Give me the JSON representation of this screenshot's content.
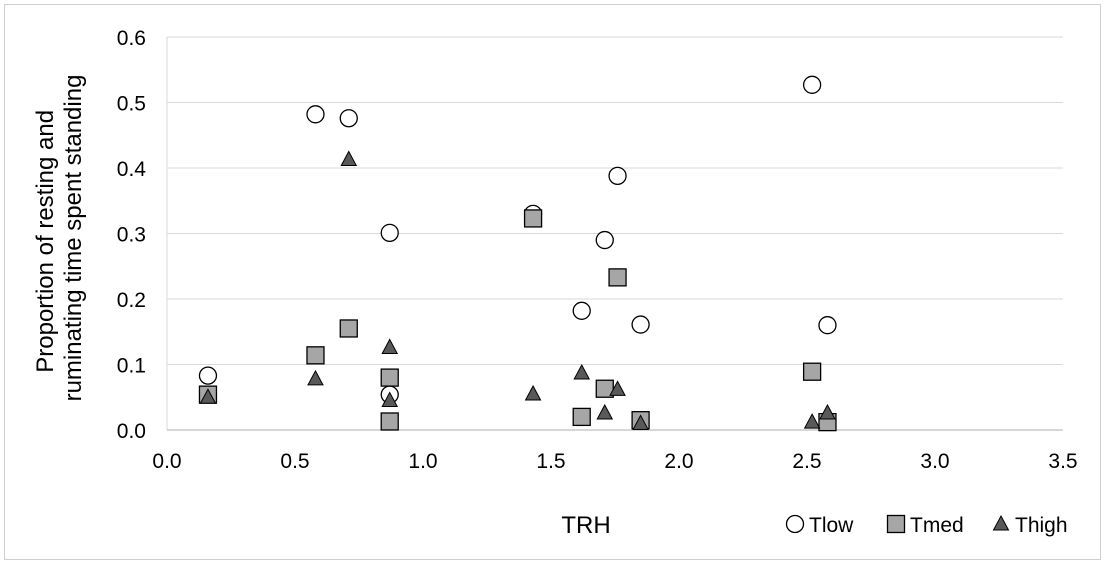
{
  "chart_data": {
    "type": "scatter",
    "title": "",
    "xlabel": "TRH",
    "ylabel_lines": [
      "Proportion of resting and",
      "ruminating time spent standing"
    ],
    "xlim": [
      0,
      3.5
    ],
    "ylim": [
      0,
      0.6
    ],
    "x_ticks": [
      "0.0",
      "0.5",
      "1.0",
      "1.5",
      "2.0",
      "2.5",
      "3.0",
      "3.5"
    ],
    "y_ticks": [
      "0.0",
      "0.1",
      "0.2",
      "0.3",
      "0.4",
      "0.5",
      "0.6"
    ],
    "grid": "horizontal",
    "legend_position": "bottom-right",
    "series": [
      {
        "name": "Tlow",
        "marker": "circle",
        "color": "#ffffff",
        "points": [
          [
            0.16,
            0.083
          ],
          [
            0.58,
            0.482
          ],
          [
            0.71,
            0.476
          ],
          [
            0.87,
            0.301
          ],
          [
            0.87,
            0.054
          ],
          [
            1.43,
            0.33
          ],
          [
            1.62,
            0.182
          ],
          [
            1.71,
            0.29
          ],
          [
            1.76,
            0.388
          ],
          [
            1.85,
            0.161
          ],
          [
            2.52,
            0.527
          ],
          [
            2.58,
            0.16
          ]
        ]
      },
      {
        "name": "Tmed",
        "marker": "square",
        "color": "#a6a6a6",
        "points": [
          [
            0.16,
            0.054
          ],
          [
            0.58,
            0.114
          ],
          [
            0.71,
            0.155
          ],
          [
            0.87,
            0.08
          ],
          [
            0.87,
            0.013
          ],
          [
            1.43,
            0.323
          ],
          [
            1.62,
            0.02
          ],
          [
            1.71,
            0.063
          ],
          [
            1.76,
            0.233
          ],
          [
            1.85,
            0.015
          ],
          [
            2.52,
            0.089
          ],
          [
            2.58,
            0.012
          ]
        ]
      },
      {
        "name": "Thigh",
        "marker": "triangle",
        "color": "#595959",
        "points": [
          [
            0.16,
            0.05
          ],
          [
            0.58,
            0.078
          ],
          [
            0.71,
            0.413
          ],
          [
            0.87,
            0.126
          ],
          [
            0.87,
            0.045
          ],
          [
            1.43,
            0.055
          ],
          [
            1.62,
            0.087
          ],
          [
            1.71,
            0.026
          ],
          [
            1.76,
            0.062
          ],
          [
            1.85,
            0.01
          ],
          [
            2.52,
            0.012
          ],
          [
            2.58,
            0.026
          ]
        ]
      }
    ]
  }
}
